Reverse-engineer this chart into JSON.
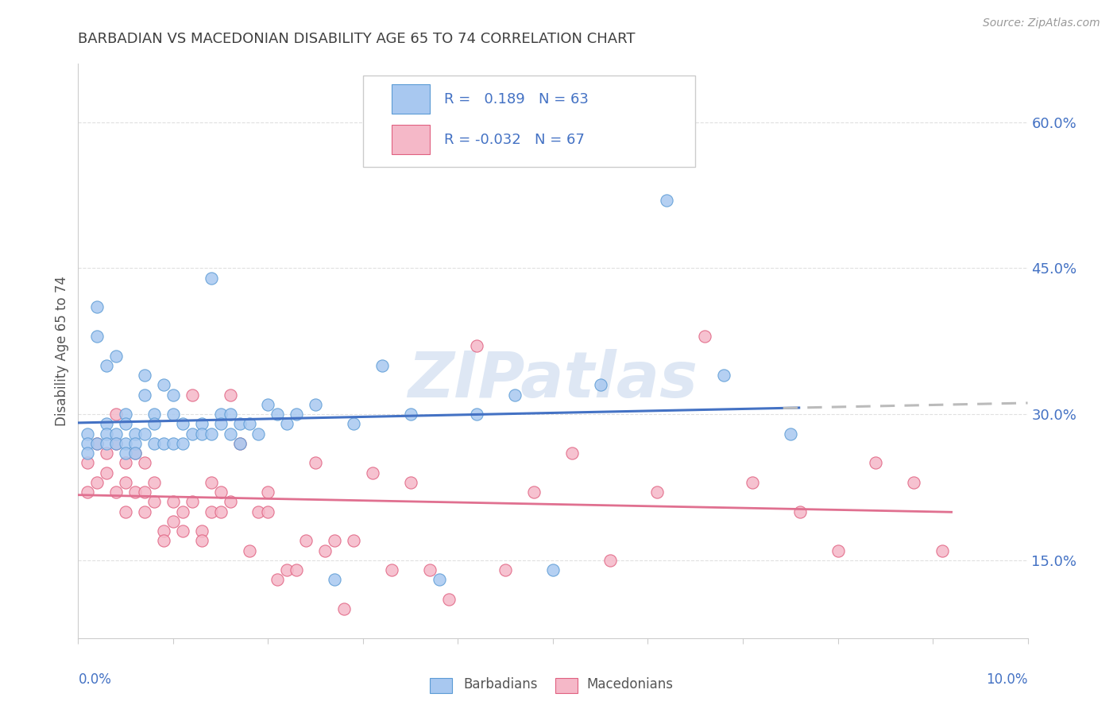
{
  "title": "BARBADIAN VS MACEDONIAN DISABILITY AGE 65 TO 74 CORRELATION CHART",
  "source": "Source: ZipAtlas.com",
  "ylabel": "Disability Age 65 to 74",
  "ytick_labels": [
    "15.0%",
    "30.0%",
    "45.0%",
    "60.0%"
  ],
  "ytick_values": [
    0.15,
    0.3,
    0.45,
    0.6
  ],
  "xmin": 0.0,
  "xmax": 0.1,
  "ymin": 0.07,
  "ymax": 0.66,
  "R_barbadian": 0.189,
  "N_barbadian": 63,
  "R_macedonian": -0.032,
  "N_macedonian": 67,
  "color_barbadian_fill": "#A8C8F0",
  "color_barbadian_edge": "#5B9BD5",
  "color_macedonian_fill": "#F5B8C8",
  "color_macedonian_edge": "#E06080",
  "color_blue_line": "#4472C4",
  "color_pink_line": "#E07090",
  "color_dashed": "#BBBBBB",
  "background_color": "#FFFFFF",
  "grid_color": "#DDDDDD",
  "legend_text_color": "#4472C4",
  "title_color": "#404040",
  "watermark_color": "#C8D8EE",
  "barbadian_x": [
    0.001,
    0.001,
    0.001,
    0.002,
    0.002,
    0.002,
    0.003,
    0.003,
    0.003,
    0.003,
    0.004,
    0.004,
    0.004,
    0.005,
    0.005,
    0.005,
    0.005,
    0.006,
    0.006,
    0.006,
    0.007,
    0.007,
    0.007,
    0.008,
    0.008,
    0.008,
    0.009,
    0.009,
    0.01,
    0.01,
    0.01,
    0.011,
    0.011,
    0.012,
    0.013,
    0.013,
    0.014,
    0.014,
    0.015,
    0.015,
    0.016,
    0.016,
    0.017,
    0.017,
    0.018,
    0.019,
    0.02,
    0.021,
    0.022,
    0.023,
    0.025,
    0.027,
    0.029,
    0.032,
    0.035,
    0.038,
    0.042,
    0.046,
    0.05,
    0.055,
    0.062,
    0.068,
    0.075
  ],
  "barbadian_y": [
    0.28,
    0.27,
    0.26,
    0.41,
    0.38,
    0.27,
    0.35,
    0.29,
    0.28,
    0.27,
    0.36,
    0.28,
    0.27,
    0.3,
    0.29,
    0.27,
    0.26,
    0.28,
    0.27,
    0.26,
    0.34,
    0.32,
    0.28,
    0.3,
    0.29,
    0.27,
    0.33,
    0.27,
    0.32,
    0.3,
    0.27,
    0.29,
    0.27,
    0.28,
    0.29,
    0.28,
    0.44,
    0.28,
    0.3,
    0.29,
    0.3,
    0.28,
    0.29,
    0.27,
    0.29,
    0.28,
    0.31,
    0.3,
    0.29,
    0.3,
    0.31,
    0.13,
    0.29,
    0.35,
    0.3,
    0.13,
    0.3,
    0.32,
    0.14,
    0.33,
    0.52,
    0.34,
    0.28
  ],
  "macedonian_x": [
    0.001,
    0.001,
    0.002,
    0.002,
    0.003,
    0.003,
    0.004,
    0.004,
    0.004,
    0.005,
    0.005,
    0.005,
    0.006,
    0.006,
    0.007,
    0.007,
    0.007,
    0.008,
    0.008,
    0.009,
    0.009,
    0.01,
    0.01,
    0.011,
    0.011,
    0.012,
    0.012,
    0.013,
    0.013,
    0.014,
    0.014,
    0.015,
    0.015,
    0.016,
    0.016,
    0.017,
    0.018,
    0.019,
    0.02,
    0.02,
    0.021,
    0.022,
    0.023,
    0.024,
    0.025,
    0.026,
    0.027,
    0.028,
    0.029,
    0.031,
    0.033,
    0.035,
    0.037,
    0.039,
    0.042,
    0.045,
    0.048,
    0.052,
    0.056,
    0.061,
    0.066,
    0.071,
    0.076,
    0.08,
    0.084,
    0.088,
    0.091
  ],
  "macedonian_y": [
    0.25,
    0.22,
    0.27,
    0.23,
    0.26,
    0.24,
    0.3,
    0.27,
    0.22,
    0.25,
    0.23,
    0.2,
    0.26,
    0.22,
    0.25,
    0.22,
    0.2,
    0.23,
    0.21,
    0.18,
    0.17,
    0.21,
    0.19,
    0.2,
    0.18,
    0.32,
    0.21,
    0.18,
    0.17,
    0.23,
    0.2,
    0.22,
    0.2,
    0.32,
    0.21,
    0.27,
    0.16,
    0.2,
    0.2,
    0.22,
    0.13,
    0.14,
    0.14,
    0.17,
    0.25,
    0.16,
    0.17,
    0.1,
    0.17,
    0.24,
    0.14,
    0.23,
    0.14,
    0.11,
    0.37,
    0.14,
    0.22,
    0.26,
    0.15,
    0.22,
    0.38,
    0.23,
    0.2,
    0.16,
    0.25,
    0.23,
    0.16
  ]
}
